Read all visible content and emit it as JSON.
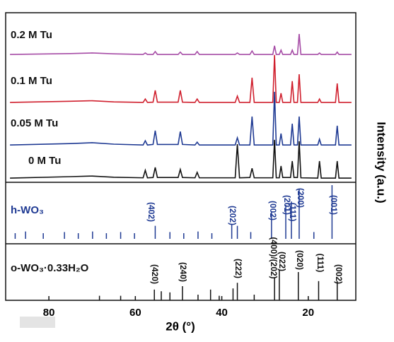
{
  "chart_data": {
    "type": "line",
    "xlabel": "2θ (°)",
    "ylabel": "Intensity (a.u.)",
    "xlim": [
      90,
      9
    ],
    "xticks": [
      80,
      60,
      40,
      20
    ],
    "ylim": [
      0,
      100
    ],
    "series": [
      {
        "name": "0 M Tu",
        "color": "#111111",
        "x": [
          89,
          75,
          70,
          65,
          58.2,
          57.7,
          57.2,
          55.9,
          55.4,
          54.9,
          50.1,
          49.6,
          49.1,
          46.2,
          45.7,
          45.2,
          36.9,
          36.4,
          35.9,
          33.5,
          33,
          32.5,
          28.2,
          27.8,
          27.4,
          26.7,
          26.3,
          25.9,
          24.1,
          23.7,
          23.3,
          22.5,
          22.1,
          21.7,
          17.8,
          17.4,
          17,
          13.7,
          13.3,
          12.9,
          10
        ],
        "values": [
          42.5,
          43,
          43.2,
          42.8,
          42.6,
          45.2,
          42.6,
          42.7,
          46.2,
          42.7,
          42.7,
          45.5,
          42.7,
          42.6,
          44.5,
          42.6,
          42.6,
          54.3,
          42.6,
          42.7,
          45.9,
          42.6,
          42.6,
          55.8,
          42.6,
          42.6,
          46.7,
          42.7,
          42.7,
          48.4,
          42.7,
          42.7,
          55.3,
          42.6,
          42.5,
          48.4,
          42.5,
          42.5,
          48.4,
          42.5,
          42.5
        ]
      },
      {
        "name": "0.05 M Tu",
        "color": "#1f3a93",
        "x": [
          89,
          75,
          70,
          65,
          58.2,
          57.7,
          57.2,
          55.9,
          55.4,
          54.9,
          50.1,
          49.6,
          49.1,
          46.2,
          45.7,
          45.2,
          36.9,
          36.4,
          35.9,
          33.5,
          33,
          32.5,
          28.2,
          27.8,
          27.4,
          26.7,
          26.3,
          25.9,
          24.1,
          23.7,
          23.3,
          22.5,
          22.1,
          21.7,
          17.8,
          17.4,
          17,
          13.7,
          13.3,
          12.9,
          10
        ],
        "values": [
          54,
          54.5,
          54.8,
          54.3,
          54,
          55.5,
          54,
          54.2,
          59,
          54.2,
          54.2,
          58.7,
          54.2,
          54,
          55,
          54,
          54,
          56.5,
          54,
          54,
          63.9,
          54,
          54,
          72.5,
          54,
          54,
          58,
          54,
          54,
          61.4,
          54,
          54,
          63.9,
          54,
          54,
          56,
          54,
          54,
          60.7,
          54,
          54
        ]
      },
      {
        "name": "0.1 M Tu",
        "color": "#d0202e",
        "x": [
          89,
          75,
          70,
          65,
          58.2,
          57.7,
          57.2,
          55.9,
          55.4,
          54.9,
          50.1,
          49.6,
          49.1,
          46.2,
          45.7,
          45.2,
          36.9,
          36.4,
          35.9,
          33.5,
          33,
          32.5,
          28.2,
          27.8,
          27.4,
          26.7,
          26.3,
          25.9,
          24.1,
          23.7,
          23.3,
          22.5,
          22.1,
          21.7,
          17.8,
          17.4,
          17,
          13.7,
          13.3,
          12.9,
          10
        ],
        "values": [
          68.8,
          69.2,
          69.4,
          69,
          68.8,
          70,
          68.8,
          68.9,
          73,
          68.9,
          68.9,
          73,
          68.9,
          68.8,
          70,
          68.8,
          68.8,
          71,
          68.8,
          68.8,
          77.4,
          68.8,
          68.8,
          85.3,
          68.8,
          68.8,
          72,
          68.8,
          68.8,
          76.2,
          68.8,
          68.8,
          78.6,
          68.8,
          68.8,
          70,
          68.8,
          68.8,
          75.4,
          68.8,
          68.8
        ]
      },
      {
        "name": "0.2 M Tu",
        "color": "#a64ca6",
        "x": [
          89,
          75,
          70,
          65,
          58.2,
          57.7,
          57.2,
          55.9,
          55.4,
          54.9,
          50.1,
          49.6,
          49.1,
          46.2,
          45.7,
          45.2,
          36.9,
          36.4,
          35.9,
          33.5,
          33,
          32.5,
          28.2,
          27.8,
          27.4,
          26.7,
          26.3,
          25.9,
          24.1,
          23.7,
          23.3,
          22.5,
          22.1,
          21.7,
          17.8,
          17.4,
          17,
          13.7,
          13.3,
          12.9,
          10
        ],
        "values": [
          85.5,
          85.8,
          86,
          85.7,
          85.5,
          86,
          85.5,
          85.5,
          86.5,
          85.5,
          85.5,
          86.3,
          85.5,
          85.5,
          86.5,
          85.5,
          85.5,
          86,
          85.5,
          85.5,
          86.7,
          85.5,
          85.5,
          88.5,
          85.5,
          85.5,
          87,
          85.5,
          85.5,
          87,
          85.5,
          85.5,
          92.6,
          85.5,
          85.5,
          86,
          85.5,
          85.5,
          86.3,
          85.5,
          85.5
        ]
      }
    ],
    "references": [
      {
        "name": "h-WO₃",
        "color": "#1f3a93",
        "ylim": [
          0,
          100
        ],
        "x": [
          87.8,
          85.4,
          81.3,
          76.4,
          73.2,
          69.9,
          66.7,
          63.4,
          60.2,
          55.4,
          52,
          48.8,
          45.5,
          42.3,
          37.7,
          36.4,
          33.3,
          28.5,
          25.2,
          23.9,
          22.1,
          18.7,
          14.5
        ],
        "values": [
          10,
          13,
          10,
          12,
          10,
          13,
          10,
          12,
          10,
          23,
          12,
          10,
          13,
          10,
          25,
          23,
          12,
          48,
          60,
          66,
          88,
          12,
          95
        ],
        "annotations": [
          "(001)",
          "(200)",
          "(111)",
          "(201)",
          "(002)",
          "(202)",
          "(402)"
        ]
      },
      {
        "name": "o-WO₃·0.33H₂O",
        "color": "#111111",
        "ylim": [
          0,
          100
        ],
        "x": [
          68.3,
          63.4,
          55.6,
          54,
          52,
          49.1,
          45.5,
          42.6,
          40.6,
          37.4,
          36.4,
          32.5,
          27.8,
          26.7,
          22.3,
          17.6,
          13.3
        ],
        "values": [
          8,
          8,
          19,
          16,
          14,
          25,
          10,
          19,
          8,
          21,
          31,
          10,
          41,
          54,
          50,
          34,
          34
        ],
        "annotations": [
          "(002)",
          "(111)",
          "(020)",
          "(022)",
          "(400)/(202)",
          "(222)",
          "(240)",
          "(420)"
        ]
      }
    ]
  }
}
